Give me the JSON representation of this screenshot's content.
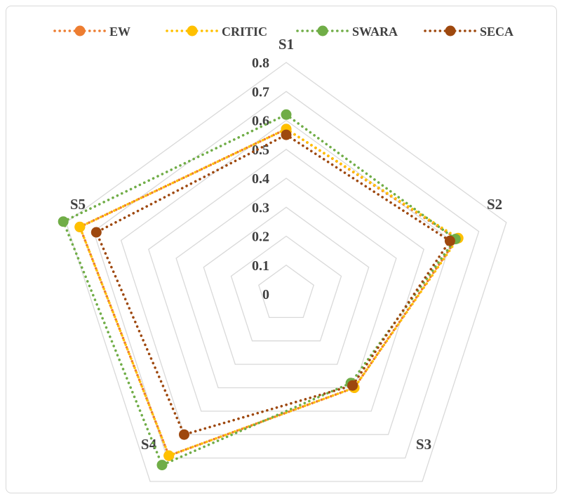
{
  "chart_data": {
    "type": "radar",
    "categories": [
      "S1",
      "S2",
      "S3",
      "S4",
      "S5"
    ],
    "r_ticks": [
      "0",
      "0.1",
      "0.2",
      "0.3",
      "0.4",
      "0.5",
      "0.6",
      "0.7",
      "0.8"
    ],
    "r_range": [
      0,
      0.8
    ],
    "grid": true,
    "legend_position": "top",
    "series": [
      {
        "name": "EW",
        "color": "#ED7D31",
        "values": [
          0.57,
          0.62,
          0.4,
          0.69,
          0.75
        ]
      },
      {
        "name": "CRITIC",
        "color": "#FFC000",
        "values": [
          0.57,
          0.625,
          0.4,
          0.69,
          0.75
        ]
      },
      {
        "name": "SWARA",
        "color": "#70AD47",
        "values": [
          0.62,
          0.615,
          0.38,
          0.73,
          0.81
        ]
      },
      {
        "name": "SECA",
        "color": "#9E480E",
        "values": [
          0.55,
          0.595,
          0.39,
          0.6,
          0.69
        ]
      }
    ]
  }
}
